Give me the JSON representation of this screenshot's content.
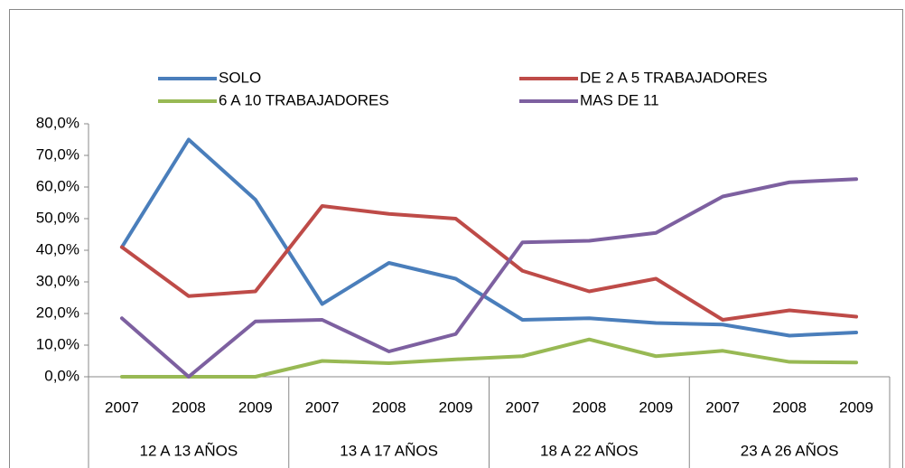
{
  "chart_data": {
    "type": "line",
    "categories": [
      "2007",
      "2008",
      "2009",
      "2007",
      "2008",
      "2009",
      "2007",
      "2008",
      "2009",
      "2007",
      "2008",
      "2009"
    ],
    "groups": [
      "12 A 13 AÑOS",
      "13 A 17 AÑOS",
      "18 A 22 AÑOS",
      "23 A 26 AÑOS"
    ],
    "series": [
      {
        "name": "SOLO",
        "color": "#4a7ebb",
        "values": [
          41,
          75,
          56,
          23,
          36,
          31,
          18,
          18.5,
          17,
          16.5,
          13,
          14
        ]
      },
      {
        "name": "DE 2 A 5 TRABAJADORES",
        "color": "#be4b48",
        "values": [
          41,
          25.5,
          27,
          54,
          51.5,
          50,
          33.5,
          27,
          31,
          18,
          21,
          19
        ]
      },
      {
        "name": "6 A 10 TRABAJADORES",
        "color": "#98b954",
        "values": [
          0,
          0,
          0,
          5,
          4.3,
          5.5,
          6.5,
          11.8,
          6.5,
          8.2,
          4.7,
          4.5
        ]
      },
      {
        "name": "MAS DE 11",
        "color": "#7d60a0",
        "values": [
          18.5,
          0,
          17.5,
          18,
          8,
          13.5,
          42.5,
          43,
          45.5,
          57,
          61.5,
          62.5
        ]
      }
    ],
    "ylim": [
      0,
      80
    ],
    "yticks": [
      {
        "value": 0,
        "label": "0,0%"
      },
      {
        "value": 10,
        "label": "10,0%"
      },
      {
        "value": 20,
        "label": "20,0%"
      },
      {
        "value": 30,
        "label": "30,0%"
      },
      {
        "value": 40,
        "label": "40,0%"
      },
      {
        "value": 50,
        "label": "50,0%"
      },
      {
        "value": 60,
        "label": "60,0%"
      },
      {
        "value": 70,
        "label": "70,0%"
      },
      {
        "value": 80,
        "label": "80,0%"
      }
    ],
    "legend": "top"
  }
}
